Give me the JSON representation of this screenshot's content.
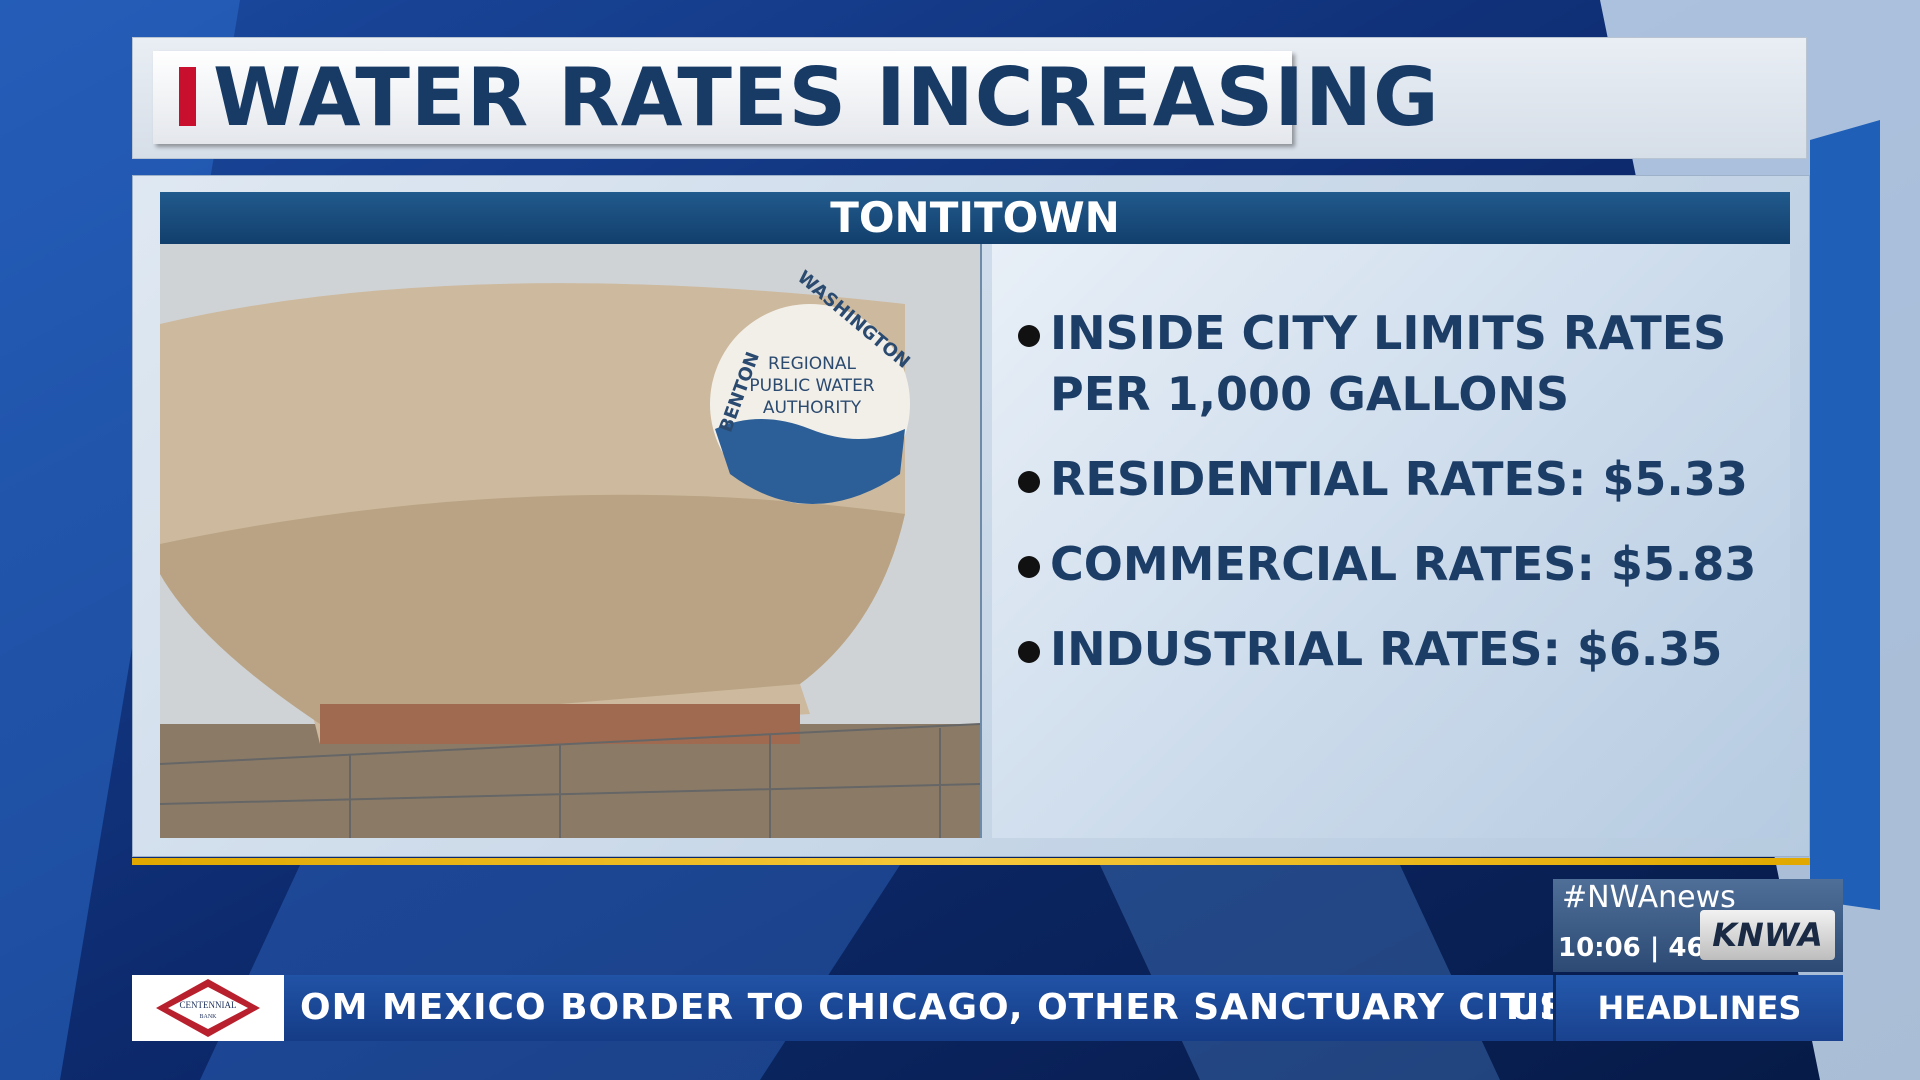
{
  "header": {
    "title": "WATER RATES INCREASING"
  },
  "panel": {
    "title": "TONTITOWN",
    "photo_sign": [
      "BENTON",
      "WASHINGTON",
      "REGIONAL",
      "PUBLIC WATER",
      "AUTHORITY"
    ],
    "bullets": [
      "INSIDE CITY LIMITS RATES PER 1,000 GALLONS",
      "RESIDENTIAL RATES: $5.33",
      "COMMERCIAL RATES: $5.83",
      "INDUSTRIAL RATES: $6.35"
    ]
  },
  "ticker": {
    "sponsor": [
      "CENTENNIAL",
      "BANK"
    ],
    "text": "OM MEXICO BORDER TO CHICAGO, OTHER SANCTUARY CITIES",
    "next": "US",
    "section": "HEADLINES"
  },
  "bug": {
    "hashtag": "#NWAnews",
    "time": "10:06",
    "temperature": "46°",
    "station": "KNWA"
  }
}
